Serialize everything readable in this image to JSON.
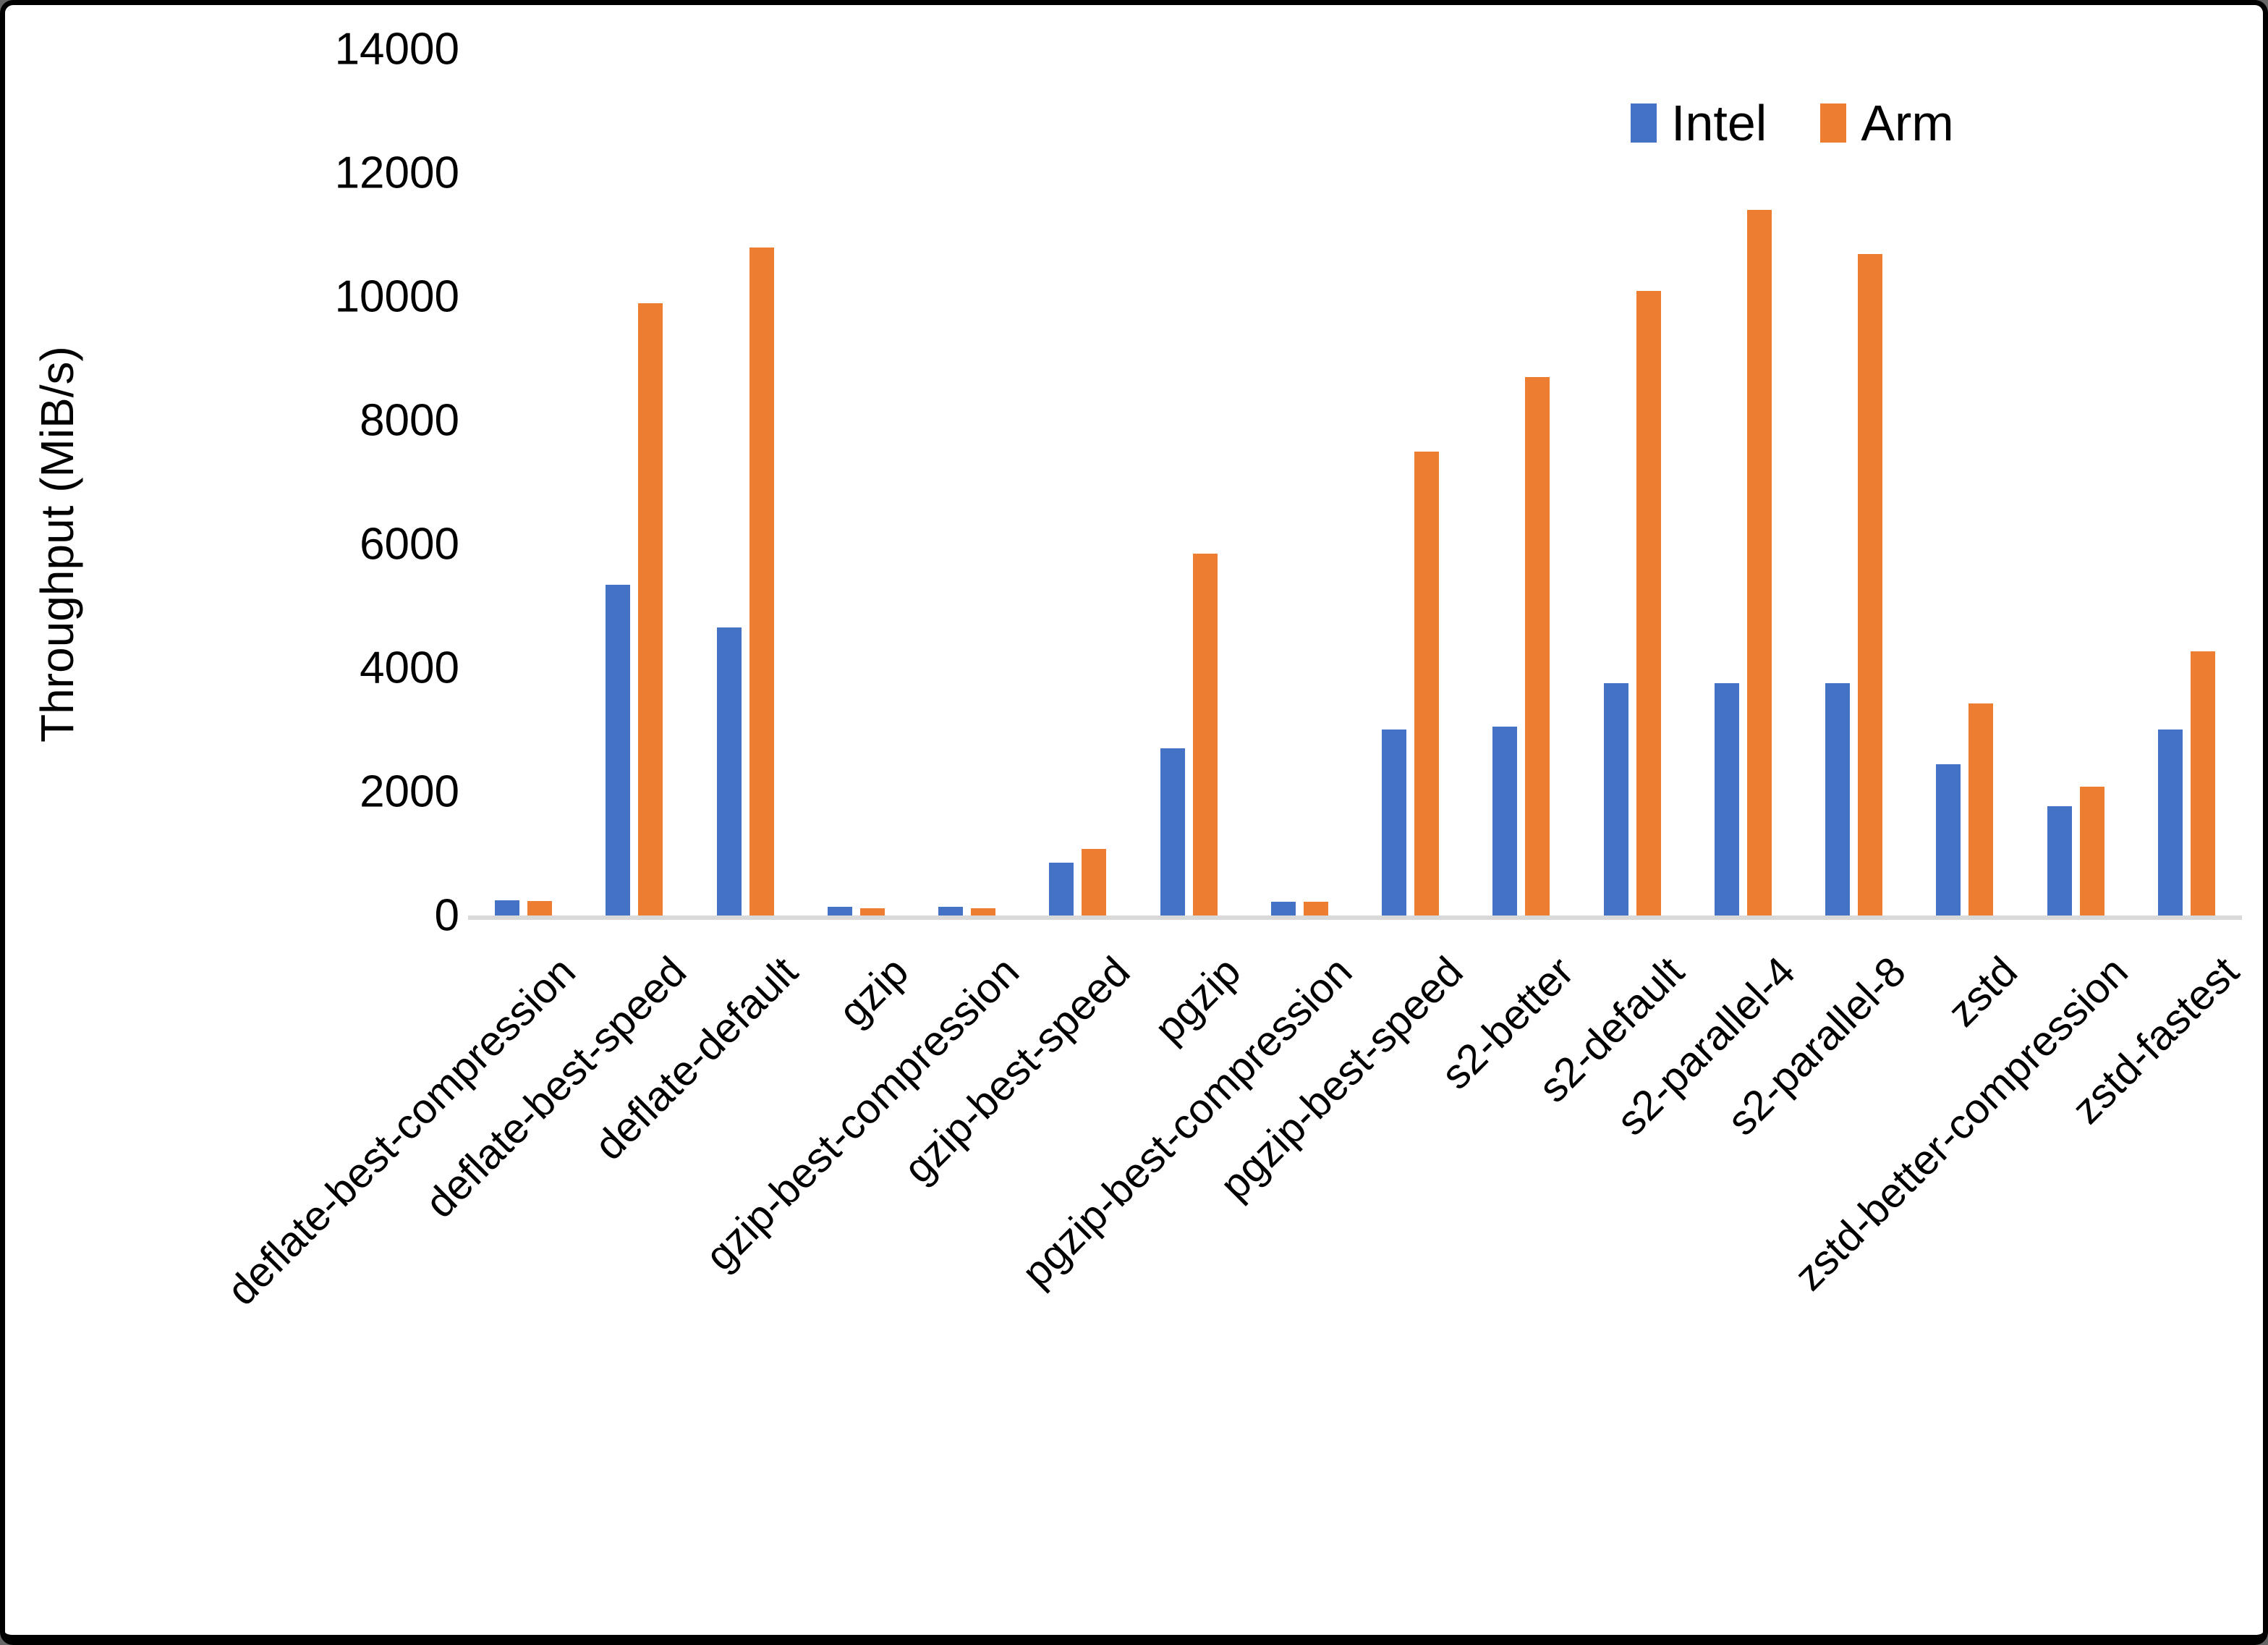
{
  "figure": {
    "y_axis_title": "Throughput (MiB/s)"
  },
  "chart_data": {
    "type": "bar",
    "title": "",
    "xlabel": "",
    "ylabel": "Throughput (MiB/s)",
    "ylim": [
      0,
      14000
    ],
    "yticks": [
      0,
      2000,
      4000,
      6000,
      8000,
      10000,
      12000,
      14000
    ],
    "grid": false,
    "legend_position": "top-right",
    "categories": [
      "deflate-best-compression",
      "deflate-best-speed",
      "deflate-default",
      "gzip",
      "gzip-best-compression",
      "gzip-best-speed",
      "pgzip",
      "pgzip-best-compression",
      "pgzip-best-speed",
      "s2-better",
      "s2-default",
      "s2-parallel-4",
      "s2-parallel-8",
      "zstd",
      "zstd-better-compression",
      "zstd-fastest"
    ],
    "series": [
      {
        "name": "Intel",
        "color": "#4472C4",
        "values": [
          240,
          5350,
          4650,
          140,
          140,
          850,
          2700,
          220,
          3000,
          3050,
          3750,
          3750,
          3750,
          2450,
          1770,
          3000
        ]
      },
      {
        "name": "Arm",
        "color": "#ED7D31",
        "values": [
          230,
          9900,
          10800,
          120,
          120,
          1080,
          5850,
          220,
          7500,
          8700,
          10090,
          11400,
          10690,
          3430,
          2080,
          4270
        ]
      }
    ]
  }
}
